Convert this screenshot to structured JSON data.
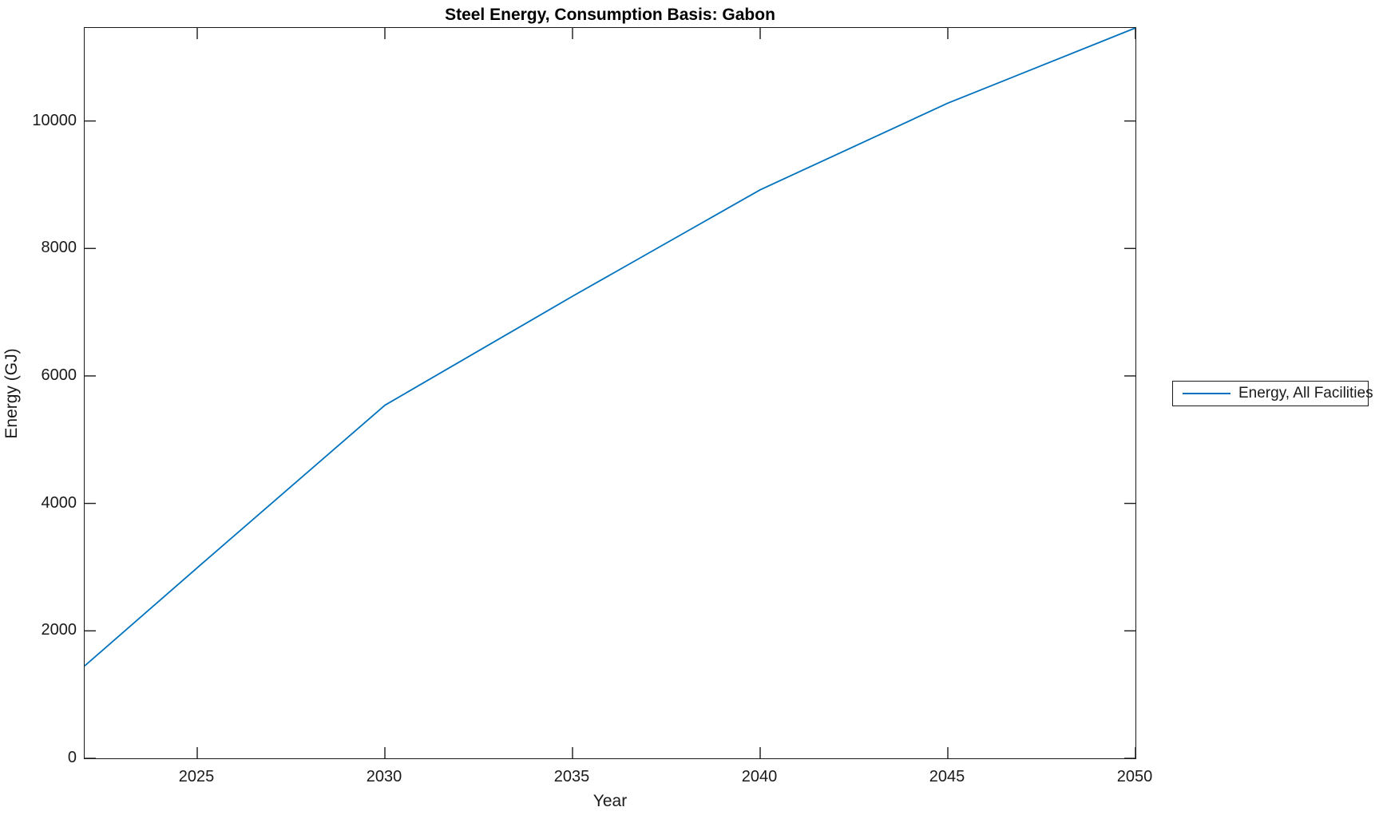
{
  "figure": {
    "background": "#ffffff",
    "axis_color": "#1a1a1a",
    "title_color": "#000000"
  },
  "chart_data": {
    "type": "line",
    "title": "Steel Energy, Consumption Basis: Gabon",
    "xlabel": "Year",
    "ylabel": "Energy (GJ)",
    "x": [
      2022,
      2025,
      2030,
      2035,
      2040,
      2045,
      2050
    ],
    "series": [
      {
        "name": "Energy, All Facilities",
        "color": "#0072BD",
        "values": [
          1450,
          2990,
          5540,
          7250,
          8920,
          10280,
          11460
        ]
      }
    ],
    "xlim": [
      2022,
      2050
    ],
    "ylim": [
      0,
      11460
    ],
    "xticks": [
      2025,
      2030,
      2035,
      2040,
      2045,
      2050
    ],
    "yticks": [
      0,
      2000,
      4000,
      6000,
      8000,
      10000
    ],
    "grid": false,
    "box": true,
    "tick_direction": "in",
    "legend_position": "right-outside",
    "legend": [
      "Energy, All Facilities"
    ]
  }
}
